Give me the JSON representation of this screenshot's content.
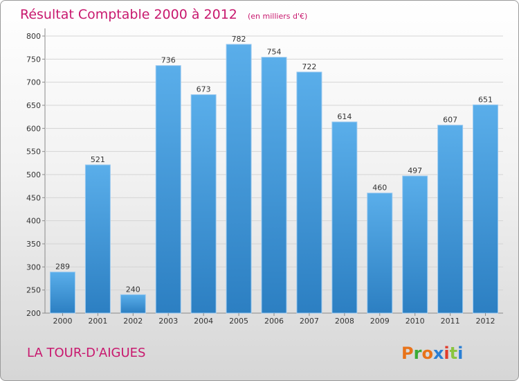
{
  "chart_data": {
    "type": "bar",
    "title": "Résultat Comptable 2000 à 2012",
    "subtitle": "(en milliers d'€)",
    "categories": [
      "2000",
      "2001",
      "2002",
      "2003",
      "2004",
      "2005",
      "2006",
      "2007",
      "2008",
      "2009",
      "2010",
      "2011",
      "2012"
    ],
    "values": [
      289,
      521,
      240,
      736,
      673,
      782,
      754,
      722,
      614,
      460,
      497,
      607,
      651
    ],
    "ylim": [
      200,
      800
    ],
    "yticks": [
      200,
      250,
      300,
      350,
      400,
      450,
      500,
      550,
      600,
      650,
      700,
      750,
      800
    ],
    "xlabel": "",
    "ylabel": "",
    "grid": true,
    "bar_color": "#3f97d8"
  },
  "footer": {
    "commune": "LA TOUR-D'AIGUES",
    "logo": "Proxiti",
    "logo_colors": [
      "#e8731a",
      "#3aaa35",
      "#e8731a",
      "#2a7fd4",
      "#e03c2c",
      "#8bc53f",
      "#2a7fd4"
    ]
  }
}
